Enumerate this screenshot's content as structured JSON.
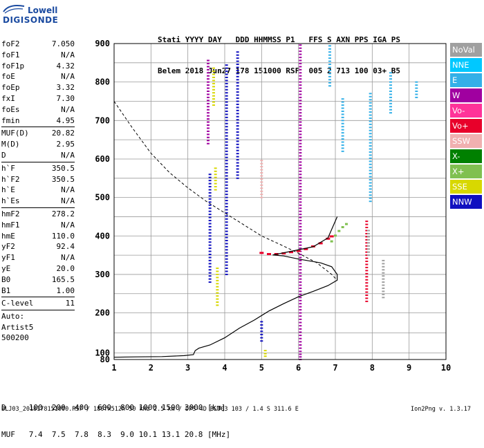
{
  "logo": {
    "line1": "Lowell",
    "line2": "DIGISONDE"
  },
  "header": {
    "line1": "Stati YYYY DAY   DDD HHMMSS P1   FFS S AXN PPS IGA PS",
    "line2": "Belem 2018 Jun27 178 151000 RSF  005 2 713 100 03+ B5"
  },
  "params": {
    "group1": [
      {
        "k": "foF2",
        "v": "7.050"
      },
      {
        "k": "foF1",
        "v": "N/A"
      },
      {
        "k": "foF1p",
        "v": "4.32"
      },
      {
        "k": "foE",
        "v": "N/A"
      },
      {
        "k": "foEp",
        "v": "3.32"
      },
      {
        "k": "fxI",
        "v": "7.30"
      },
      {
        "k": "foEs",
        "v": "N/A"
      },
      {
        "k": "fmin",
        "v": "4.95"
      }
    ],
    "group2": [
      {
        "k": "MUF(D)",
        "v": "20.82"
      },
      {
        "k": "M(D)",
        "v": "2.95"
      },
      {
        "k": "D",
        "v": "N/A"
      }
    ],
    "group3": [
      {
        "k": "h`F",
        "v": "350.5"
      },
      {
        "k": "h`F2",
        "v": "350.5"
      },
      {
        "k": "h`E",
        "v": "N/A"
      },
      {
        "k": "h`Es",
        "v": "N/A"
      }
    ],
    "group4": [
      {
        "k": "hmF2",
        "v": "278.2"
      },
      {
        "k": "hmF1",
        "v": "N/A"
      },
      {
        "k": "hmE",
        "v": "110.0"
      },
      {
        "k": "yF2",
        "v": "92.4"
      },
      {
        "k": "yF1",
        "v": "N/A"
      },
      {
        "k": "yE",
        "v": "20.0"
      },
      {
        "k": "B0",
        "v": "165.5"
      },
      {
        "k": "B1",
        "v": "1.00"
      }
    ],
    "clevel": {
      "k": "C-level",
      "v": "11"
    },
    "auto": [
      "Auto:",
      "Artist5",
      "500200"
    ]
  },
  "legend": [
    {
      "label": "NoVal",
      "color": "#a0a0a0"
    },
    {
      "label": "NNE",
      "color": "#00c8ff"
    },
    {
      "label": "E",
      "color": "#33b0e8"
    },
    {
      "label": "W",
      "color": "#a000a0"
    },
    {
      "label": "Vo-",
      "color": "#ff3399"
    },
    {
      "label": "Vo+",
      "color": "#e8002a"
    },
    {
      "label": "SSW",
      "color": "#f0b0b0"
    },
    {
      "label": "X-",
      "color": "#008000"
    },
    {
      "label": "X+",
      "color": "#80c050"
    },
    {
      "label": "SSE",
      "color": "#d8d800"
    },
    {
      "label": "NNW",
      "color": "#1010c0"
    }
  ],
  "bottom_table": {
    "row1": "D     100  200  400  600  800 1000 1500 3000 [km]",
    "row2": "MUF   7.4  7.5  7.8  8.3  9.0 10.1 13.1 20.8 [MHz]"
  },
  "footer": {
    "left": "BLJ03_2018178151000.RSF / 180fx512h 50 kHz 2.5 km / DPS-4D BLJ03 103 / 1.4 S 311.6 E",
    "right": "Ion2Png v. 1.3.17"
  },
  "chart_data": {
    "type": "scatter",
    "xlim": [
      1,
      10
    ],
    "ylim": [
      80,
      900
    ],
    "xticks": [
      "1",
      "2",
      "3",
      "4",
      "5",
      "6",
      "7",
      "8",
      "9",
      "10"
    ],
    "yticks": [
      "80",
      "100",
      "200",
      "300",
      "400",
      "500",
      "600",
      "700",
      "800",
      "900"
    ],
    "grid": true,
    "ntrace": [
      [
        1.0,
        87
      ],
      [
        1.6,
        88
      ],
      [
        2.3,
        89
      ],
      [
        2.9,
        92
      ],
      [
        3.15,
        95
      ],
      [
        3.2,
        106
      ],
      [
        3.3,
        112
      ],
      [
        3.6,
        120
      ],
      [
        4.0,
        138
      ],
      [
        4.4,
        162
      ],
      [
        4.8,
        182
      ],
      [
        5.2,
        205
      ],
      [
        5.6,
        224
      ],
      [
        6.0,
        242
      ],
      [
        6.4,
        256
      ],
      [
        6.8,
        271
      ],
      [
        7.05,
        285
      ],
      [
        7.05,
        300
      ],
      [
        6.9,
        320
      ],
      [
        6.6,
        330
      ],
      [
        6.0,
        340
      ],
      [
        5.6,
        348
      ],
      [
        5.3,
        350.5
      ],
      [
        5.8,
        360
      ],
      [
        6.4,
        372
      ],
      [
        6.8,
        395
      ],
      [
        7.05,
        450
      ]
    ],
    "mufcurve": [
      [
        1.0,
        750
      ],
      [
        1.5,
        680
      ],
      [
        2.0,
        615
      ],
      [
        2.5,
        565
      ],
      [
        3.0,
        525
      ],
      [
        3.5,
        490
      ],
      [
        4.0,
        460
      ],
      [
        4.5,
        430
      ],
      [
        5.0,
        400
      ],
      [
        5.5,
        378
      ],
      [
        6.0,
        355
      ],
      [
        6.5,
        330
      ],
      [
        6.9,
        300
      ],
      [
        7.05,
        285
      ]
    ],
    "o_trace": [
      [
        5.0,
        355
      ],
      [
        5.2,
        352
      ],
      [
        5.4,
        352
      ],
      [
        5.6,
        354
      ],
      [
        5.8,
        357
      ],
      [
        6.0,
        360
      ],
      [
        6.2,
        365
      ],
      [
        6.4,
        372
      ],
      [
        6.6,
        380
      ],
      [
        6.8,
        392
      ],
      [
        6.9,
        398
      ]
    ],
    "x_trace": [
      [
        6.9,
        385
      ],
      [
        7.0,
        400
      ],
      [
        7.1,
        412
      ],
      [
        7.2,
        422
      ],
      [
        7.3,
        430
      ]
    ],
    "echoes": [
      {
        "x": 3.55,
        "y0": 640,
        "y1": 860,
        "color": "W"
      },
      {
        "x": 3.6,
        "y0": 280,
        "y1": 560,
        "color": "NNW"
      },
      {
        "x": 3.75,
        "y0": 520,
        "y1": 580,
        "color": "SSE"
      },
      {
        "x": 3.8,
        "y0": 220,
        "y1": 320,
        "color": "SSE"
      },
      {
        "x": 3.7,
        "y0": 740,
        "y1": 840,
        "color": "SSE"
      },
      {
        "x": 4.05,
        "y0": 300,
        "y1": 850,
        "color": "NNW"
      },
      {
        "x": 4.35,
        "y0": 550,
        "y1": 880,
        "color": "NNW"
      },
      {
        "x": 5.0,
        "y0": 130,
        "y1": 180,
        "color": "NNW"
      },
      {
        "x": 5.0,
        "y0": 500,
        "y1": 600,
        "color": "SSW"
      },
      {
        "x": 5.1,
        "y0": 90,
        "y1": 110,
        "color": "SSE"
      },
      {
        "x": 6.05,
        "y0": 80,
        "y1": 900,
        "color": "W"
      },
      {
        "x": 6.85,
        "y0": 790,
        "y1": 900,
        "color": "E"
      },
      {
        "x": 7.2,
        "y0": 620,
        "y1": 760,
        "color": "E"
      },
      {
        "x": 7.85,
        "y0": 230,
        "y1": 440,
        "color": "Vo+"
      },
      {
        "x": 7.9,
        "y0": 350,
        "y1": 420,
        "color": "NoVal"
      },
      {
        "x": 7.95,
        "y0": 490,
        "y1": 770,
        "color": "E"
      },
      {
        "x": 8.5,
        "y0": 720,
        "y1": 830,
        "color": "E"
      },
      {
        "x": 9.2,
        "y0": 760,
        "y1": 800,
        "color": "E"
      },
      {
        "x": 8.3,
        "y0": 240,
        "y1": 340,
        "color": "NoVal"
      }
    ]
  }
}
